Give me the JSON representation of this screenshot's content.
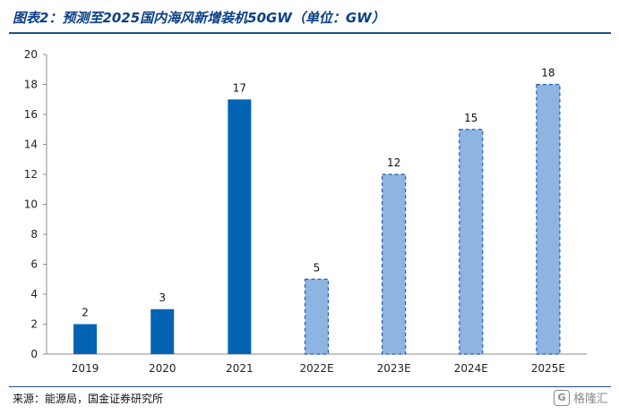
{
  "header": {
    "title": "图表2：预测至2025国内海风新增装机50GW（单位：GW）"
  },
  "footer": {
    "source": "来源：能源局，国金证券研究所",
    "watermark_text": "格隆汇",
    "watermark_logo": "G"
  },
  "chart_data": {
    "type": "bar",
    "title": "",
    "xlabel": "",
    "ylabel": "",
    "categories": [
      "2019",
      "2020",
      "2021",
      "2022E",
      "2023E",
      "2024E",
      "2025E"
    ],
    "values": [
      2,
      3,
      17,
      5,
      12,
      15,
      18
    ],
    "estimated": [
      false,
      false,
      false,
      true,
      true,
      true,
      true
    ],
    "ylim": [
      0,
      20
    ],
    "yticks": [
      0,
      2,
      4,
      6,
      8,
      10,
      12,
      14,
      16,
      18,
      20
    ],
    "grid": false,
    "colors": {
      "actual": "#0563b3",
      "estimate_fill": "#8eb4e3",
      "estimate_border": "#1f5fa6",
      "axis": "#8c8c8c"
    }
  }
}
